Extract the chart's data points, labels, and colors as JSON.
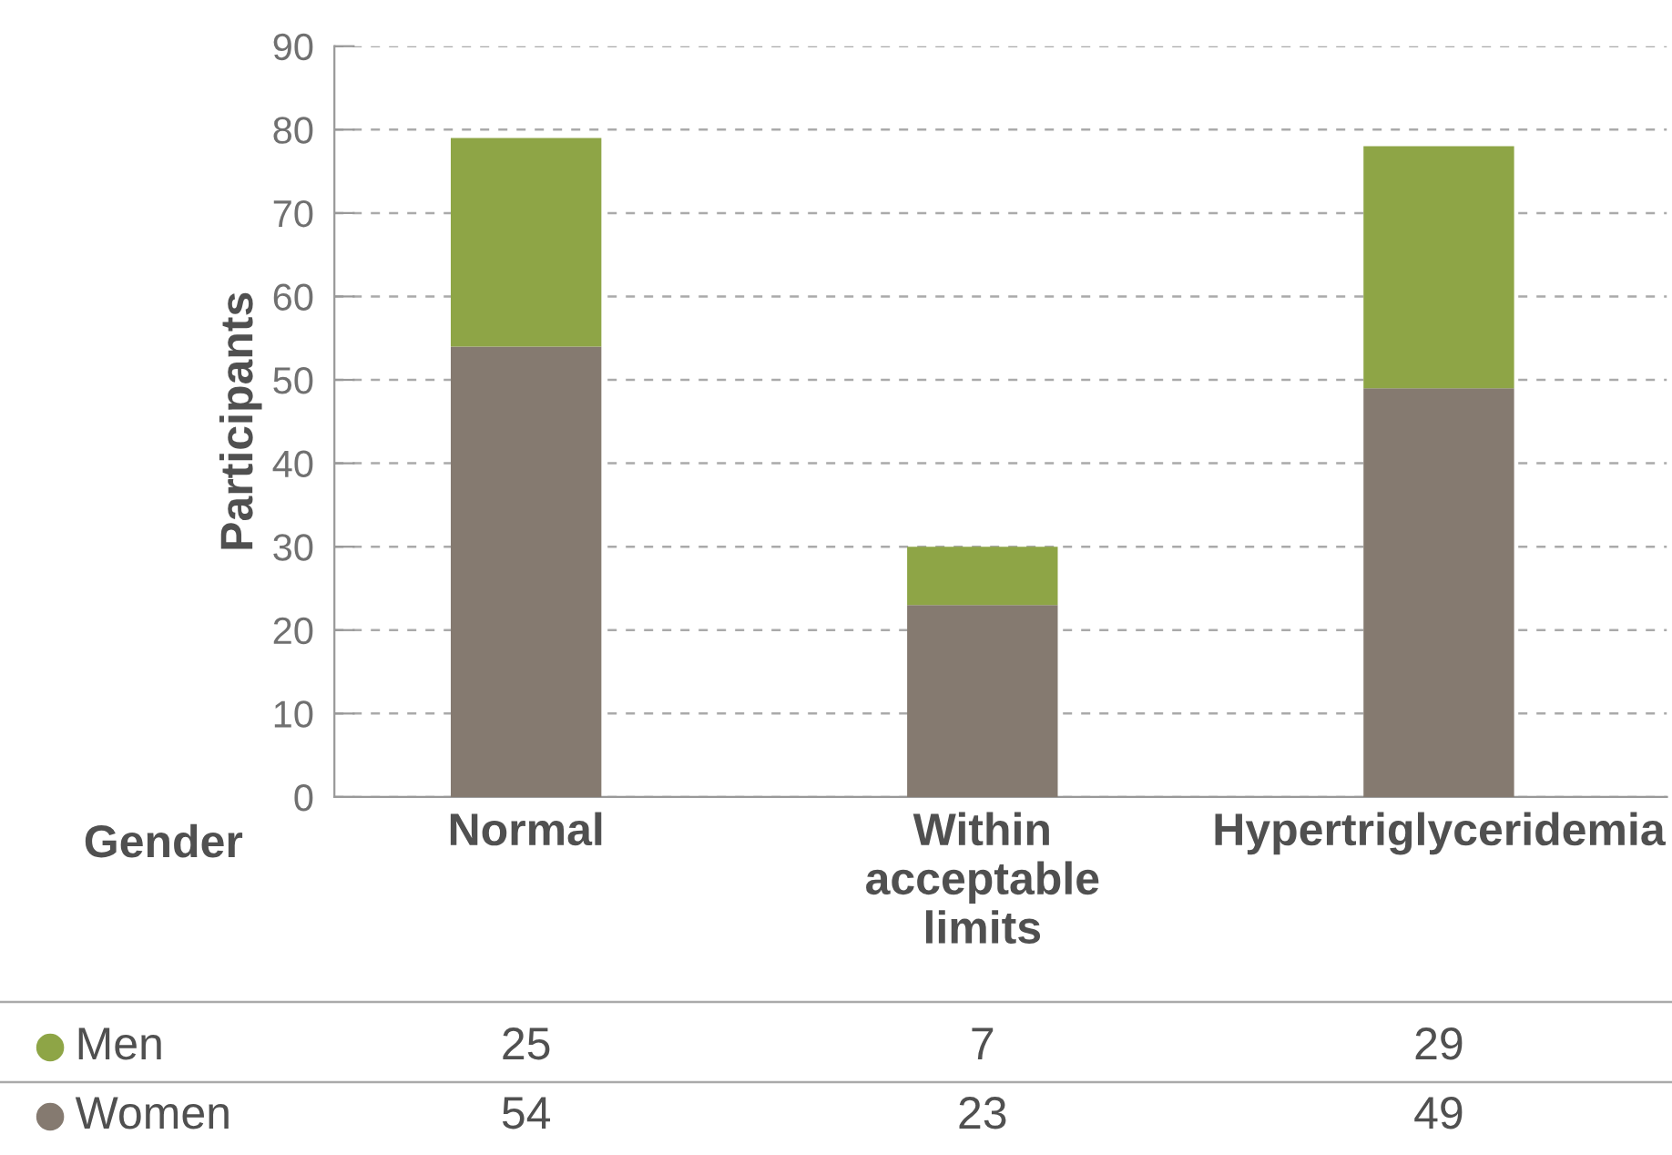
{
  "chart_data": {
    "type": "bar",
    "stacked": true,
    "ylabel": "Participants",
    "legend_title": "Gender",
    "categories": [
      "Normal",
      "Within acceptable limits",
      "Hypertriglyceridemia"
    ],
    "series": [
      {
        "name": "Women",
        "color": "#857a70",
        "values": [
          54,
          23,
          49
        ]
      },
      {
        "name": "Men",
        "color": "#8ea546",
        "values": [
          25,
          7,
          29
        ]
      }
    ],
    "ylim": [
      0,
      90
    ],
    "yticks": [
      0,
      10,
      20,
      30,
      40,
      50,
      60,
      70,
      80,
      90
    ],
    "grid": "y",
    "legend": "bottom",
    "data_labels": true
  }
}
